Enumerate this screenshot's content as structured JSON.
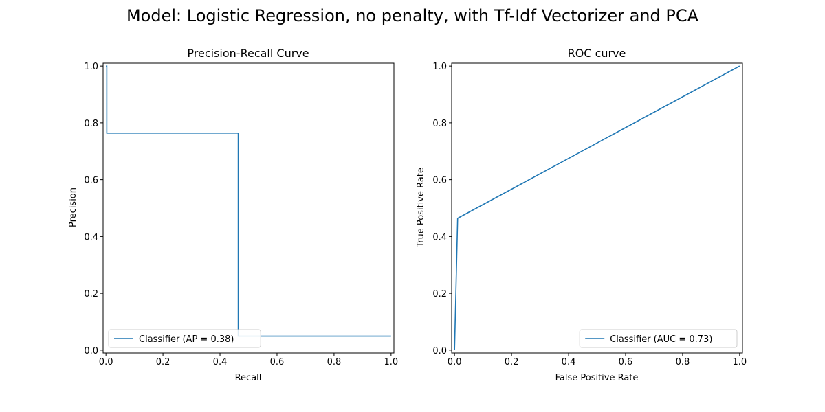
{
  "suptitle": "Model: Logistic Regression, no penalty, with Tf-Idf Vectorizer and PCA",
  "colors": {
    "line": "#1f77b4",
    "axis": "#000000",
    "legend_border": "#cccccc"
  },
  "chart_data": [
    {
      "type": "line",
      "title": "Precision-Recall Curve",
      "xlabel": "Recall",
      "ylabel": "Precision",
      "xlim": [
        -0.01,
        1.01
      ],
      "ylim": [
        -0.01,
        1.01
      ],
      "xticks": [
        0.0,
        0.2,
        0.4,
        0.6,
        0.8,
        1.0
      ],
      "yticks": [
        0.0,
        0.2,
        0.4,
        0.6,
        0.8,
        1.0
      ],
      "xtick_labels": [
        "0.0",
        "0.2",
        "0.4",
        "0.6",
        "0.8",
        "1.0"
      ],
      "ytick_labels": [
        "0.0",
        "0.2",
        "0.4",
        "0.6",
        "0.8",
        "1.0"
      ],
      "legend_position": "lower-left",
      "grid": false,
      "series": [
        {
          "name": "Classifier (AP = 0.38)",
          "x": [
            0.0,
            0.0,
            0.003,
            0.003,
            0.464,
            0.464,
            1.0
          ],
          "y": [
            1.0,
            1.0,
            1.0,
            0.764,
            0.764,
            0.049,
            0.049
          ]
        }
      ]
    },
    {
      "type": "line",
      "title": "ROC curve",
      "xlabel": "False Positive Rate",
      "ylabel": "True Positive Rate",
      "xlim": [
        -0.01,
        1.01
      ],
      "ylim": [
        -0.01,
        1.01
      ],
      "xticks": [
        0.0,
        0.2,
        0.4,
        0.6,
        0.8,
        1.0
      ],
      "yticks": [
        0.0,
        0.2,
        0.4,
        0.6,
        0.8,
        1.0
      ],
      "xtick_labels": [
        "0.0",
        "0.2",
        "0.4",
        "0.6",
        "0.8",
        "1.0"
      ],
      "ytick_labels": [
        "0.0",
        "0.2",
        "0.4",
        "0.6",
        "0.8",
        "1.0"
      ],
      "legend_position": "lower-right",
      "grid": false,
      "series": [
        {
          "name": "Classifier (AUC = 0.73)",
          "x": [
            0.0,
            0.011,
            1.0
          ],
          "y": [
            0.0,
            0.464,
            1.0
          ]
        }
      ]
    }
  ]
}
